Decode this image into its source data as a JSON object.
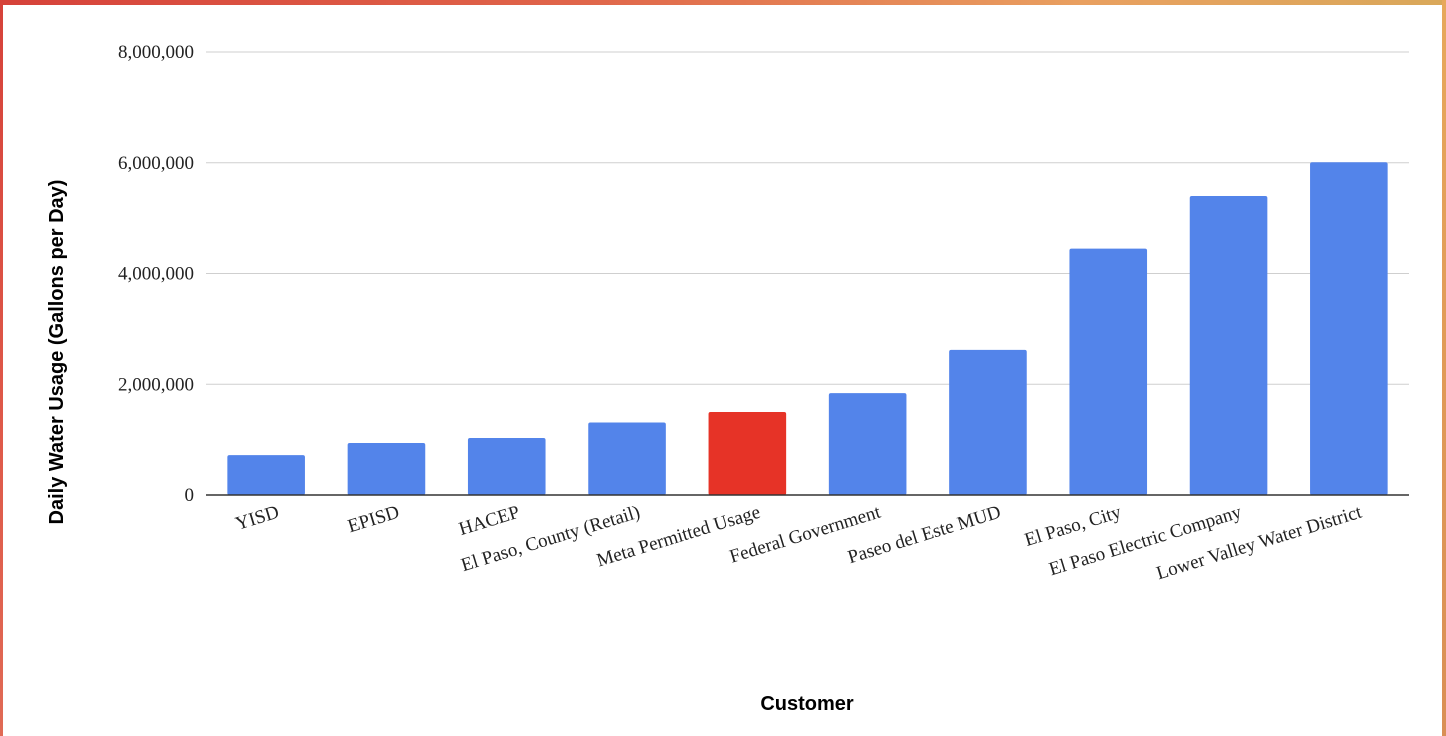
{
  "chart_data": {
    "type": "bar",
    "title": "",
    "xlabel": "Customer",
    "ylabel": "Daily Water Usage (Gallons per Day)",
    "ylim": [
      0,
      8000000
    ],
    "yticks": [
      0,
      2000000,
      4000000,
      6000000,
      8000000
    ],
    "ytick_labels": [
      "0",
      "2,000,000",
      "4,000,000",
      "6,000,000",
      "8,000,000"
    ],
    "grid": true,
    "legend": "none",
    "categories": [
      "YISD",
      "EPISD",
      "HACEP",
      "El Paso, County (Retail)",
      "Meta Permitted Usage",
      "Federal Government",
      "Paseo del Este MUD",
      "El Paso, City",
      "El Paso Electric Company",
      "Lower Valley Water District"
    ],
    "values": [
      720000,
      940000,
      1030000,
      1310000,
      1500000,
      1840000,
      2620000,
      4450000,
      5400000,
      6010000
    ],
    "colors": {
      "default_bar": "#5384ea",
      "highlight_bar": "#e63327",
      "gridline": "#cfcfcf",
      "baseline": "#333333"
    },
    "highlight_category": "Meta Permitted Usage"
  }
}
